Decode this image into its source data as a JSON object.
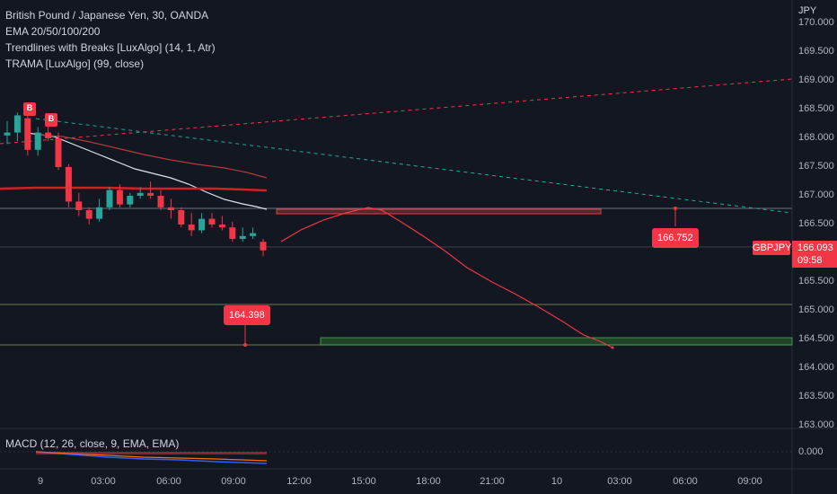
{
  "legend": {
    "symbol_line": "British Pound / Japanese Yen, 30, OANDA",
    "indicators": [
      "EMA 20/50/100/200",
      "Trendlines with Breaks [LuxAlgo] (14, 1, Atr)",
      "TRAMA [LuxAlgo] (99, close)"
    ]
  },
  "price_axis": {
    "currency": "JPY",
    "ticks": [
      "170.000",
      "169.500",
      "169.000",
      "168.500",
      "168.000",
      "167.500",
      "167.000",
      "166.500",
      "166.000",
      "165.500",
      "165.000",
      "164.500",
      "164.000",
      "163.500",
      "163.000"
    ]
  },
  "time_axis": {
    "ticks": [
      "9",
      "03:00",
      "06:00",
      "09:00",
      "12:00",
      "15:00",
      "18:00",
      "21:00",
      "10",
      "03:00",
      "06:00",
      "09:00"
    ]
  },
  "current_price": {
    "symbol": "GBPJPY",
    "price": "166.093",
    "countdown": "09:58"
  },
  "callouts": {
    "upper_target": "166.752",
    "lower_target": "164.398"
  },
  "markers": [
    "B",
    "B"
  ],
  "macd": {
    "label": "MACD (12, 26, close, 9, EMA, EMA)",
    "value": "0.000"
  },
  "colors": {
    "background": "#131722",
    "bull": "#26a69a",
    "bear": "#f23645",
    "ema": "#e0e3eb",
    "trama": "#d42020"
  },
  "chart_data": {
    "type": "candlestick",
    "ohlc_approx": [
      [
        168.05,
        168.3,
        167.9,
        168.1
      ],
      [
        168.1,
        168.45,
        167.95,
        168.4
      ],
      [
        168.35,
        168.5,
        167.7,
        167.8
      ],
      [
        167.8,
        168.2,
        167.7,
        168.1
      ],
      [
        168.1,
        168.25,
        167.95,
        168.0
      ],
      [
        168.0,
        168.1,
        167.45,
        167.5
      ],
      [
        167.5,
        167.55,
        166.8,
        166.9
      ],
      [
        166.9,
        167.05,
        166.65,
        166.75
      ],
      [
        166.75,
        166.8,
        166.5,
        166.6
      ],
      [
        166.6,
        166.95,
        166.55,
        166.8
      ],
      [
        166.8,
        167.15,
        166.75,
        167.1
      ],
      [
        167.1,
        167.2,
        166.8,
        166.85
      ],
      [
        166.85,
        167.05,
        166.8,
        167.0
      ],
      [
        167.0,
        167.15,
        166.95,
        167.05
      ],
      [
        167.05,
        167.25,
        166.95,
        167.0
      ],
      [
        167.0,
        167.1,
        166.75,
        166.8
      ],
      [
        166.8,
        166.95,
        166.6,
        166.75
      ],
      [
        166.75,
        166.8,
        166.45,
        166.5
      ],
      [
        166.5,
        166.7,
        166.3,
        166.4
      ],
      [
        166.4,
        166.7,
        166.35,
        166.6
      ],
      [
        166.6,
        166.7,
        166.45,
        166.5
      ],
      [
        166.5,
        166.65,
        166.4,
        166.45
      ],
      [
        166.45,
        166.55,
        166.2,
        166.25
      ],
      [
        166.25,
        166.45,
        166.2,
        166.3
      ],
      [
        166.3,
        166.45,
        166.25,
        166.35
      ],
      [
        166.2,
        166.25,
        165.95,
        166.05
      ]
    ],
    "ylim": [
      162.9,
      170.1
    ]
  }
}
